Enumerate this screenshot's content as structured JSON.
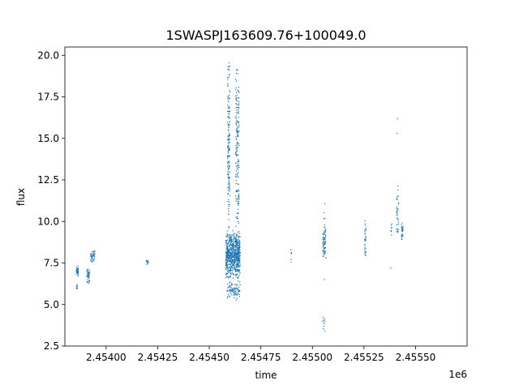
{
  "chart_data": {
    "type": "scatter",
    "title": "1SWASPJ163609.76+100049.0",
    "xlabel": "time",
    "ylabel": "flux",
    "x_offset_label": "1e6",
    "x_tick_labels": [
      "2.45400",
      "2.45425",
      "2.45450",
      "2.45475",
      "2.45500",
      "2.45525",
      "2.45550"
    ],
    "x_tick_values": [
      2454000,
      2454250,
      2454500,
      2454750,
      2455000,
      2455250,
      2455500
    ],
    "y_tick_labels": [
      "2.5",
      "5.0",
      "7.5",
      "10.0",
      "12.5",
      "15.0",
      "17.5",
      "20.0"
    ],
    "y_tick_values": [
      2.5,
      5.0,
      7.5,
      10.0,
      12.5,
      15.0,
      17.5,
      20.0
    ],
    "xlim": [
      2453800,
      2455750
    ],
    "ylim": [
      2.5,
      20.5
    ],
    "grid": false,
    "point_color": "#1f77b4",
    "clusters": [
      {
        "x": [
          2453855,
          2453865
        ],
        "y": [
          6.6,
          7.4
        ],
        "n": 40
      },
      {
        "x": [
          2453856,
          2453862
        ],
        "y": [
          5.8,
          6.3
        ],
        "n": 8
      },
      {
        "x": [
          2453905,
          2453920
        ],
        "y": [
          6.2,
          7.3
        ],
        "n": 40
      },
      {
        "x": [
          2453925,
          2453945
        ],
        "y": [
          7.5,
          8.4
        ],
        "n": 45
      },
      {
        "x": [
          2454195,
          2454205
        ],
        "y": [
          7.3,
          7.8
        ],
        "n": 12
      },
      {
        "x": [
          2454580,
          2454650
        ],
        "y": [
          6.5,
          9.5
        ],
        "n": 700
      },
      {
        "x": [
          2454588,
          2454600
        ],
        "y": [
          9.0,
          20.0
        ],
        "n": 160
      },
      {
        "x": [
          2454628,
          2454645
        ],
        "y": [
          9.0,
          19.8
        ],
        "n": 170
      },
      {
        "x": [
          2454585,
          2454650
        ],
        "y": [
          5.2,
          6.5
        ],
        "n": 90
      },
      {
        "x": [
          2454895,
          2454900
        ],
        "y": [
          7.2,
          8.8
        ],
        "n": 6
      },
      {
        "x": [
          2455050,
          2455065
        ],
        "y": [
          7.7,
          9.9
        ],
        "n": 70
      },
      {
        "x": [
          2455055,
          2455062
        ],
        "y": [
          10.0,
          11.2
        ],
        "n": 4
      },
      {
        "x": [
          2455050,
          2455062
        ],
        "y": [
          3.3,
          4.4
        ],
        "n": 10
      },
      {
        "x": [
          2455253,
          2455260
        ],
        "y": [
          7.7,
          10.4
        ],
        "n": 30
      },
      {
        "x": [
          2455380,
          2455385
        ],
        "y": [
          8.9,
          10.0
        ],
        "n": 8
      },
      {
        "x": [
          2455408,
          2455418
        ],
        "y": [
          8.5,
          12.5
        ],
        "n": 35
      },
      {
        "x": [
          2455432,
          2455440
        ],
        "y": [
          8.8,
          10.1
        ],
        "n": 30
      }
    ],
    "outliers": [
      {
        "x": 2455412,
        "y": 16.2
      },
      {
        "x": 2455410,
        "y": 15.3
      },
      {
        "x": 2455380,
        "y": 7.2
      },
      {
        "x": 2455058,
        "y": 6.5
      }
    ]
  }
}
